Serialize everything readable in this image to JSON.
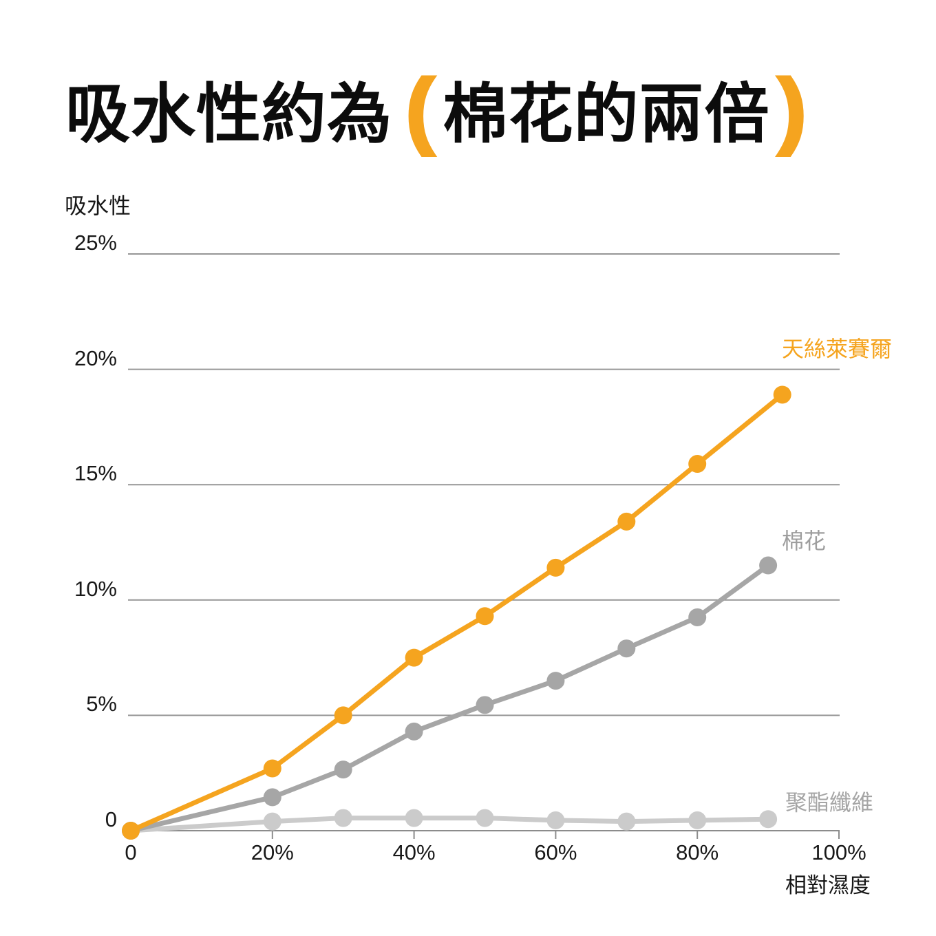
{
  "title": {
    "prefix": "吸水性約為",
    "paren_open": "(",
    "highlight": "棉花的兩倍",
    "paren_close": ")"
  },
  "colors": {
    "accent_orange": "#F5A41F",
    "cotton_gray": "#A6A6A6",
    "polyester_gray": "#CBCBCB",
    "grid_line": "#969696",
    "axis_line": "#8C8C8C",
    "axis_text": "#181818"
  },
  "chart_data": {
    "type": "line",
    "title": "吸水性約為（棉花的兩倍）",
    "ylabel": "吸水性",
    "xlabel": "相對濕度",
    "xlim": [
      0,
      100
    ],
    "ylim": [
      0,
      25
    ],
    "grid": "horizontal",
    "legend_position": "right-end-of-lines",
    "y_ticks": [
      {
        "label": "25%",
        "value": 25
      },
      {
        "label": "20%",
        "value": 20
      },
      {
        "label": "15%",
        "value": 15
      },
      {
        "label": "10%",
        "value": 10
      },
      {
        "label": "5%",
        "value": 5
      },
      {
        "label": "0",
        "value": 0
      }
    ],
    "x_ticks": [
      {
        "label": "0",
        "value": 0
      },
      {
        "label": "20%",
        "value": 20
      },
      {
        "label": "40%",
        "value": 40
      },
      {
        "label": "60%",
        "value": 60
      },
      {
        "label": "80%",
        "value": 80
      },
      {
        "label": "100%",
        "value": 100
      }
    ],
    "series": [
      {
        "name": "聚酯纖維",
        "color": "#CBCBCB",
        "x": [
          0,
          20,
          30,
          40,
          50,
          60,
          70,
          80,
          90
        ],
        "y": [
          0,
          0.4,
          0.55,
          0.55,
          0.55,
          0.45,
          0.4,
          0.45,
          0.5
        ]
      },
      {
        "name": "棉花",
        "color": "#A6A6A6",
        "x": [
          0,
          20,
          30,
          40,
          50,
          60,
          70,
          80,
          90
        ],
        "y": [
          0,
          1.45,
          2.65,
          4.3,
          5.45,
          6.5,
          7.9,
          9.25,
          11.5
        ]
      },
      {
        "name": "天絲萊賽爾",
        "color": "#F5A41F",
        "x": [
          0,
          20,
          30,
          40,
          50,
          60,
          70,
          80,
          92
        ],
        "y": [
          0,
          2.7,
          5.0,
          7.5,
          9.3,
          11.4,
          13.4,
          15.9,
          18.9
        ]
      }
    ]
  }
}
